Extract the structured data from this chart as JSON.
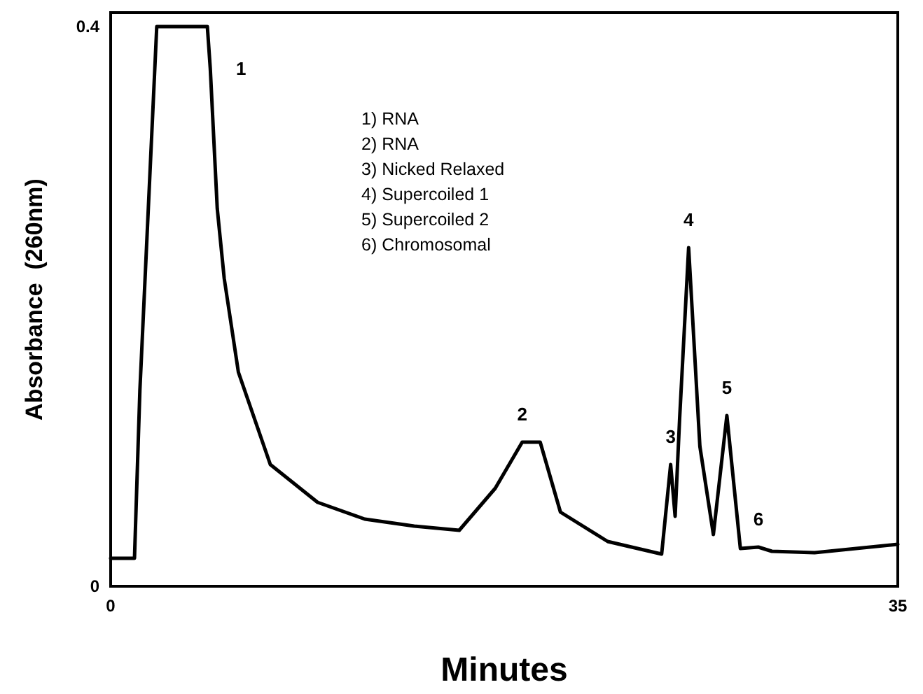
{
  "chart_data": {
    "type": "line",
    "xlabel": "Minutes",
    "ylabel": "Absorbance  (260nm)",
    "xlim": [
      0,
      35
    ],
    "xticks": [
      0,
      35
    ],
    "ylim": [
      0,
      0.41
    ],
    "yticks": [
      0,
      0.4
    ],
    "grid": false,
    "marker": "none",
    "line_style": "solid",
    "series": [
      {
        "color": "#000000",
        "x": [
          0,
          1.06,
          1.3,
          2.05,
          4.3,
          4.43,
          4.74,
          5.05,
          5.68,
          7.1,
          9.2,
          11.3,
          13.5,
          15.5,
          17.1,
          18.3,
          19.1,
          20.0,
          22.1,
          24.5,
          24.9,
          25.1,
          25.3,
          25.7,
          26.2,
          26.8,
          27.4,
          28.0,
          28.8,
          29.4,
          31.3,
          35
        ],
        "values": [
          0.02,
          0.02,
          0.14,
          0.4,
          0.4,
          0.37,
          0.27,
          0.22,
          0.153,
          0.087,
          0.06,
          0.048,
          0.043,
          0.04,
          0.07,
          0.103,
          0.103,
          0.053,
          0.032,
          0.023,
          0.087,
          0.05,
          0.12,
          0.242,
          0.1,
          0.037,
          0.122,
          0.027,
          0.028,
          0.025,
          0.024,
          0.03
        ]
      }
    ],
    "annotations": [
      {
        "text": "1",
        "x": 4.43,
        "y": 0.37
      },
      {
        "text": "2",
        "x": 18.3,
        "y": 0.103
      },
      {
        "text": "3",
        "x": 24.9,
        "y": 0.087
      },
      {
        "text": "4",
        "x": 25.7,
        "y": 0.242
      },
      {
        "text": "5",
        "x": 27.4,
        "y": 0.122
      },
      {
        "text": "6",
        "x": 28.8,
        "y": 0.028
      },
      "1) RNA\n2) RNA\n3) Nicked Relaxed\n4) Supercoiled 1\n5) Supercoiled 2\n6) Chromosomal"
    ]
  }
}
